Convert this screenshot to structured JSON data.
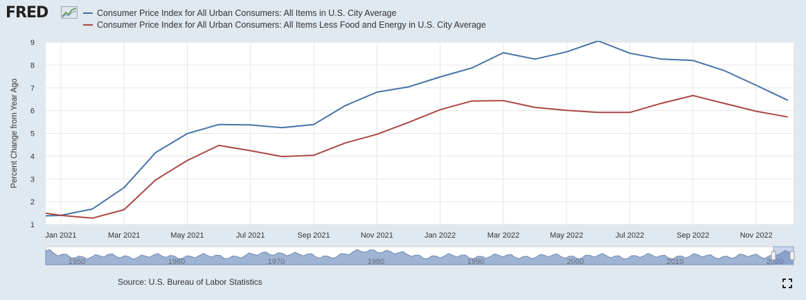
{
  "header": {
    "logo_text": "FRED",
    "logo_icon": "line-chart-icon"
  },
  "footer": {
    "source": "Source: U.S. Bureau of Labor Statistics",
    "fullscreen_icon": "fullscreen-icon"
  },
  "navigator": {
    "tick_labels": [
      "1950",
      "1960",
      "1970",
      "1980",
      "1990",
      "2000",
      "2010",
      "2020"
    ]
  },
  "chart_data": {
    "type": "line",
    "title": "",
    "xlabel": "",
    "ylabel": "Percent Change from Year Ago",
    "ylim": [
      1,
      9
    ],
    "yticks": [
      1,
      2,
      3,
      4,
      5,
      6,
      7,
      8,
      9
    ],
    "grid": true,
    "legend_position": "top-left",
    "x": [
      "2020-12",
      "2021-01",
      "2021-02",
      "2021-03",
      "2021-04",
      "2021-05",
      "2021-06",
      "2021-07",
      "2021-08",
      "2021-09",
      "2021-10",
      "2021-11",
      "2021-12",
      "2022-01",
      "2022-02",
      "2022-03",
      "2022-04",
      "2022-05",
      "2022-06",
      "2022-07",
      "2022-08",
      "2022-09",
      "2022-10",
      "2022-11",
      "2022-12"
    ],
    "x_tick_labels": [
      {
        "x": "2021-01",
        "label": "Jan 2021"
      },
      {
        "x": "2021-03",
        "label": "Mar 2021"
      },
      {
        "x": "2021-05",
        "label": "May 2021"
      },
      {
        "x": "2021-07",
        "label": "Jul 2021"
      },
      {
        "x": "2021-09",
        "label": "Sep 2021"
      },
      {
        "x": "2021-11",
        "label": "Nov 2021"
      },
      {
        "x": "2022-01",
        "label": "Jan 2022"
      },
      {
        "x": "2022-03",
        "label": "Mar 2022"
      },
      {
        "x": "2022-05",
        "label": "May 2022"
      },
      {
        "x": "2022-07",
        "label": "Jul 2022"
      },
      {
        "x": "2022-09",
        "label": "Sep 2022"
      },
      {
        "x": "2022-11",
        "label": "Nov 2022"
      }
    ],
    "series": [
      {
        "name": "Consumer Price Index for All Urban Consumers: All Items in U.S. City Average",
        "color": "#4572a7",
        "values": [
          1.36,
          1.4,
          1.68,
          2.62,
          4.16,
          4.99,
          5.39,
          5.37,
          5.25,
          5.39,
          6.22,
          6.81,
          7.04,
          7.48,
          7.87,
          8.54,
          8.26,
          8.58,
          9.06,
          8.52,
          8.26,
          8.2,
          7.75,
          7.11,
          6.45
        ]
      },
      {
        "name": "Consumer Price Index for All Urban Consumers: All Items Less Food and Energy in U.S. City Average",
        "color": "#aa4643",
        "values": [
          1.6,
          1.4,
          1.28,
          1.65,
          2.96,
          3.81,
          4.47,
          4.24,
          3.98,
          4.04,
          4.58,
          4.96,
          5.48,
          6.04,
          6.42,
          6.44,
          6.14,
          6.01,
          5.92,
          5.92,
          6.32,
          6.66,
          6.31,
          5.97,
          5.72
        ]
      }
    ]
  },
  "colors": {
    "background": "#e1e9f0",
    "plot_background": "#ffffff",
    "grid": "#e6e6e6",
    "navigator_fill": "#9fb3d3"
  }
}
